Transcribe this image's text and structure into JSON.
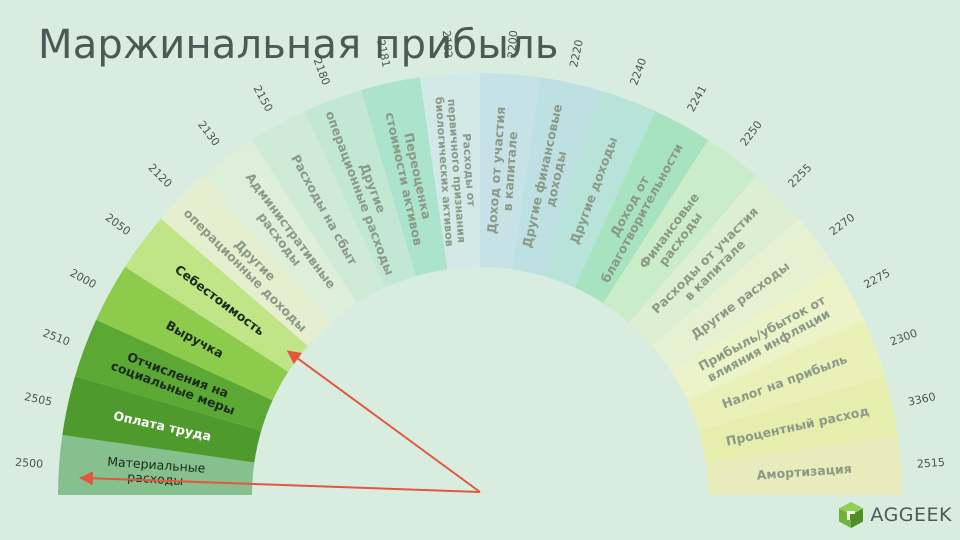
{
  "title": "Маржинальная прибыль",
  "logo": {
    "text": "AGGEEK",
    "icon": "aggeek-cube-logo"
  },
  "segments": [
    {
      "code": "2500",
      "label": [
        "Материальные",
        "расходы"
      ],
      "color": "#86c08e",
      "text_color": "#1c2a1c",
      "bold": false
    },
    {
      "code": "2505",
      "label": [
        "Оплата труда"
      ],
      "color": "#4f9a2c",
      "text_color": "#ffffff",
      "bold": true
    },
    {
      "code": "2510",
      "label": [
        "Отчисления на",
        "социальные меры"
      ],
      "color": "#5ca835",
      "text_color": "#1c2a1c",
      "bold": true
    },
    {
      "code": "2000",
      "label": [
        "Выручка"
      ],
      "color": "#8dcb4c",
      "text_color": "#1c2a1c",
      "bold": true
    },
    {
      "code": "2050",
      "label": [
        "Себестоимость"
      ],
      "color": "#bfe587",
      "text_color": "#1c2a1c",
      "bold": true
    },
    {
      "code": "2120",
      "label": [
        "Другие",
        "операционные доходы"
      ],
      "color": "#e5efcf",
      "text_color": "#8b9a87",
      "bold": true
    },
    {
      "code": "2130",
      "label": [
        "Административные",
        "расходы"
      ],
      "color": "#ddefd8",
      "text_color": "#8b9a87",
      "bold": true
    },
    {
      "code": "2150",
      "label": [
        "Расходы на сбыт"
      ],
      "color": "#cfead6",
      "text_color": "#8b9a87",
      "bold": true
    },
    {
      "code": "2180",
      "label": [
        "Другие",
        "операционные расходы"
      ],
      "color": "#c2e8d4",
      "text_color": "#8b9a87",
      "bold": true
    },
    {
      "code": "2181",
      "label": [
        "Переоценка",
        "стоимости активов"
      ],
      "color": "#ace3cc",
      "text_color": "#8b9a87",
      "bold": true
    },
    {
      "code": "2182",
      "label": [
        "Расходы от",
        "первичного признания",
        "биологических активов"
      ],
      "color": "#d2e9e8",
      "text_color": "#8b9a87",
      "bold": true
    },
    {
      "code": "2200",
      "label": [
        "Доход от участия",
        "в капитале"
      ],
      "color": "#c7e2e6",
      "text_color": "#8b9a87",
      "bold": true
    },
    {
      "code": "2220",
      "label": [
        "Другие финансовые",
        "доходы"
      ],
      "color": "#bfe0e3",
      "text_color": "#8b9a87",
      "bold": true
    },
    {
      "code": "2240",
      "label": [
        "Другие доходы"
      ],
      "color": "#b7e3d9",
      "text_color": "#8b9a87",
      "bold": true
    },
    {
      "code": "2241",
      "label": [
        "Доход от",
        "благотворительности"
      ],
      "color": "#a8e3bf",
      "text_color": "#8b9a87",
      "bold": true
    },
    {
      "code": "2250",
      "label": [
        "Финансовые",
        "расходы"
      ],
      "color": "#cbecc8",
      "text_color": "#8b9a87",
      "bold": true
    },
    {
      "code": "2255",
      "label": [
        "Расходы от участия",
        "в капитале"
      ],
      "color": "#dcefd2",
      "text_color": "#8b9a87",
      "bold": true
    },
    {
      "code": "2270",
      "label": [
        "Другие расходы"
      ],
      "color": "#e6f1d2",
      "text_color": "#8b9a87",
      "bold": true
    },
    {
      "code": "2275",
      "label": [
        "Прибыль/убыток от",
        "влияния инфляции"
      ],
      "color": "#ecf3c9",
      "text_color": "#8b9a87",
      "bold": true
    },
    {
      "code": "2300",
      "label": [
        "Налог на прибыль"
      ],
      "color": "#eaf1b8",
      "text_color": "#8b9a87",
      "bold": true
    },
    {
      "code": "3360",
      "label": [
        "Процентный расход"
      ],
      "color": "#e5eeac",
      "text_color": "#8b9a87",
      "bold": true
    },
    {
      "code": "2515",
      "label": [
        "Амортизация"
      ],
      "color": "#e8ebbb",
      "text_color": "#8b9a87",
      "bold": true
    }
  ],
  "arrows": {
    "color": "#e4563d"
  }
}
